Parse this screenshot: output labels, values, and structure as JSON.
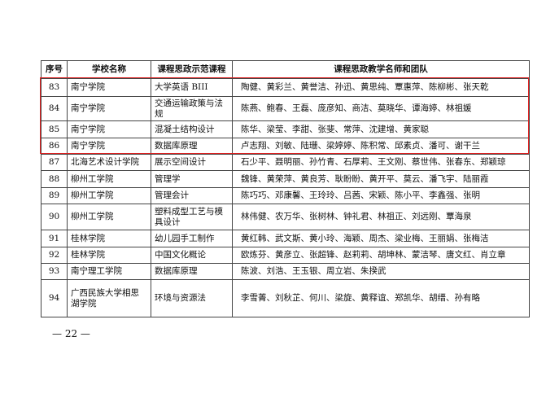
{
  "table": {
    "header": [
      "序号",
      "学校名称",
      "课程思政示范课程",
      "课程思政教学名师和团队"
    ],
    "rows": [
      [
        "83",
        "南宁学院",
        "大学英语 BIII",
        "陶健、黄彩兰、黄誉洁、孙迅、黄思纯、覃惠萍、陈柳彬、张天乾"
      ],
      [
        "84",
        "南宁学院",
        "交通运输政策与法规",
        "陈燕、鲍春、王磊、庞彦知、商洁、莫晓华、谭海婷、林祖媛"
      ],
      [
        "85",
        "南宁学院",
        "混凝土结构设计",
        "陈华、梁莹、李甜、张斐、常萍、沈建增、黄家聪"
      ],
      [
        "86",
        "南宁学院",
        "数据库原理",
        "卢志翔、刘敏、陆珊、梁婷婷、陈积常、邱素贞、潘可、谢干兰"
      ],
      [
        "87",
        "北海艺术设计学院",
        "展示空间设计",
        "石少平、聂明丽、孙竹青、石厚莉、王文刚、蔡世伟、张春东、郑颖琼"
      ],
      [
        "88",
        "柳州工学院",
        "管理学",
        "魏锋、黄荣萍、黄良芳、耿盼盼、黄开平、莫云、潘飞宇、陆丽霞"
      ],
      [
        "89",
        "柳州工学院",
        "管理会计",
        "陈巧巧、邓康馨、王玲玲、吕茜、宋颖、陈小平、李鑫强、张明"
      ],
      [
        "90",
        "柳州工学院",
        "塑料成型工艺与模具设计",
        "林伟健、农万华、张树林、钟礼君、林祖正、刘远刚、覃海泉"
      ],
      [
        "91",
        "桂林学院",
        "幼儿园手工制作",
        "黄红韩、武文斯、黄小玲、海颖、周杰、梁业梅、王丽娟、张梅洁"
      ],
      [
        "92",
        "桂林学院",
        "中国文化概论",
        "欧炼芬、黄彦立、张超锋、赵莉莉、胡坤林、蒙洁琴、唐文红、肖立章"
      ],
      [
        "93",
        "南宁理工学院",
        "数据库原理",
        "陈波、刘浩、王玉银、周立岩、朱揆武"
      ],
      [
        "94",
        "广西民族大学相思湖学院",
        "环境与资源法",
        "李雪菁、刘秋芷、何川、梁旋、黄释谊、郑凯华、胡缙、孙有略"
      ]
    ]
  },
  "footer": {
    "page": "— 22 —"
  }
}
